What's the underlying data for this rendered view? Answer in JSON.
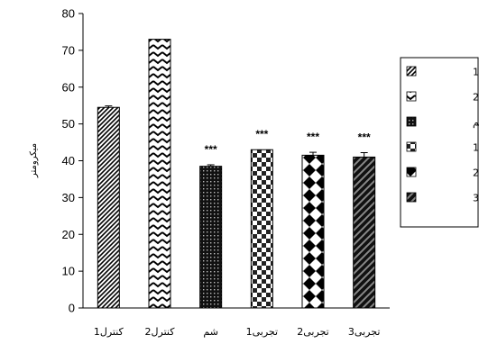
{
  "chart_data": {
    "type": "bar",
    "ylabel": "میکرومتر",
    "ylim": [
      0,
      80
    ],
    "yticks": [
      0,
      10,
      20,
      30,
      40,
      50,
      60,
      70,
      80
    ],
    "grid": false,
    "legend_position": "right",
    "categories": [
      "کنترل1",
      "کنترل2",
      "شم",
      "تجربی1",
      "تجربی2",
      "تجربی3"
    ],
    "values": [
      54.5,
      73,
      38.5,
      43,
      41.5,
      41
    ],
    "errors": [
      0.4,
      0,
      0.4,
      0,
      0.8,
      1.2
    ],
    "annotations": [
      "",
      "",
      "***",
      "***",
      "***",
      "***"
    ],
    "legend": [
      "کنترل1",
      "کنترل2",
      "شم",
      "تجربی1",
      "تجربی2",
      "تجربی3"
    ]
  }
}
